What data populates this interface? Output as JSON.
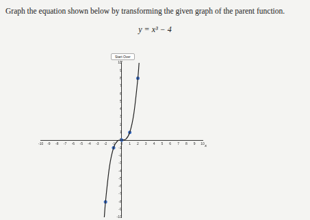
{
  "page": {
    "instruction": "Graph the equation shown below by transforming the given graph of the parent function.",
    "equation": "y = x³ − 4",
    "button": "Start Over"
  },
  "chart_data": {
    "type": "line",
    "x_label": "x",
    "y_label": "y",
    "xlim": [
      -10,
      10
    ],
    "ylim": [
      -10,
      10
    ],
    "xticks": [
      -10,
      -9,
      -8,
      -7,
      -6,
      -5,
      -4,
      -3,
      -2,
      -1,
      0,
      1,
      2,
      3,
      4,
      5,
      6,
      7,
      8,
      9,
      10
    ],
    "yticks": [
      -10,
      -9,
      -8,
      -7,
      -6,
      -5,
      -4,
      -3,
      -2,
      -1,
      0,
      1,
      2,
      3,
      4,
      5,
      6,
      7,
      8,
      9,
      10
    ],
    "grid": false,
    "series": [
      {
        "type": "line",
        "color": "#222222",
        "marker": "none",
        "line_style": "solid",
        "x": [
          -2.15,
          -2,
          -1.5,
          -1,
          -0.5,
          0,
          0.5,
          1,
          1.5,
          2,
          2.15
        ],
        "values": [
          -10,
          -8,
          -3.4,
          -1,
          -0.1,
          0,
          0.1,
          1,
          3.4,
          8,
          10
        ]
      },
      {
        "type": "scatter",
        "color": "#3b6fc9",
        "marker": "circle",
        "x": [
          -2,
          -1,
          0,
          1,
          2
        ],
        "values": [
          -8,
          -1,
          0,
          1,
          8
        ]
      }
    ]
  }
}
